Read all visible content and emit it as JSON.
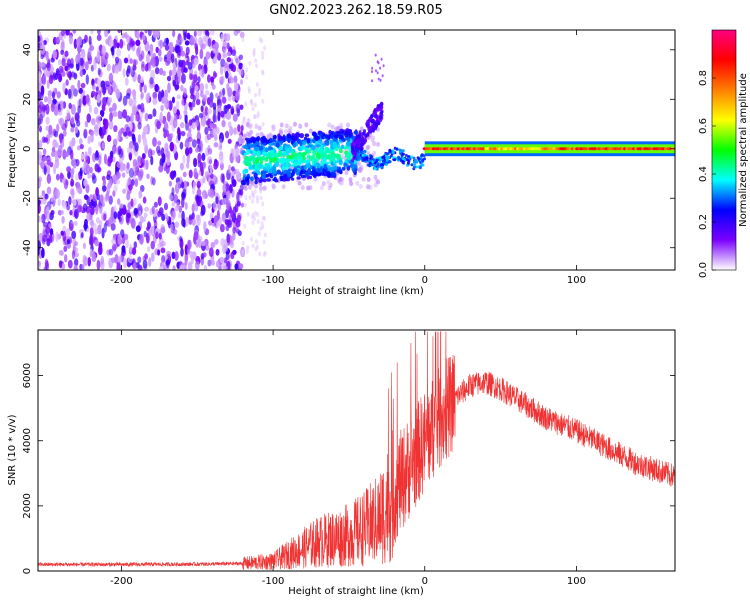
{
  "title": "GN02.2023.262.18.59.R05",
  "chart_data": [
    {
      "type": "heatmap",
      "xlabel": "Height of straight line (km)",
      "ylabel": "Frequency (Hz)",
      "xlim": [
        -255,
        165
      ],
      "ylim": [
        -49,
        48
      ],
      "xticks": [
        -200,
        -100,
        0,
        100
      ],
      "xtick_labels": [
        "-200",
        "-100",
        "0",
        "100"
      ],
      "yticks": [
        -40,
        -20,
        0,
        20,
        40
      ],
      "ytick_labels": [
        "-40",
        "-20",
        "0",
        "20",
        "40"
      ],
      "colorbar": {
        "label": "Normalized spectral amplitude",
        "range": [
          0,
          1
        ],
        "ticks": [
          0.0,
          0.2,
          0.4,
          0.6,
          0.8
        ],
        "tick_labels": [
          "0.0",
          "0.2",
          "0.4",
          "0.6",
          "0.8"
        ],
        "colors": [
          "#ffffff",
          "#7b00ff",
          "#0000ff",
          "#00ffff",
          "#00ff00",
          "#ffff00",
          "#ff7f00",
          "#ff0000",
          "#ff0080"
        ]
      },
      "features": [
        {
          "name": "broadband noise",
          "x_range": [
            -255,
            -120
          ],
          "y_range": [
            -49,
            48
          ],
          "amplitude": 0.15
        },
        {
          "name": "signal onset",
          "x_range": [
            -120,
            -45
          ],
          "y_range": [
            -15,
            5
          ],
          "amplitude": 0.35
        },
        {
          "name": "rising branch",
          "x_range": [
            -45,
            -30
          ],
          "y_range": [
            0,
            28
          ],
          "amplitude": 0.2
        },
        {
          "name": "carrier",
          "x_range": [
            0,
            165
          ],
          "y_center": 0,
          "amplitude": 0.95
        }
      ]
    },
    {
      "type": "line",
      "xlabel": "Height of straight line (km)",
      "ylabel": "SNR (10 * v/v)",
      "xlim": [
        -255,
        165
      ],
      "ylim": [
        0,
        7400
      ],
      "xticks": [
        -200,
        -100,
        0,
        100
      ],
      "xtick_labels": [
        "-200",
        "-100",
        "0",
        "100"
      ],
      "yticks": [
        0,
        2000,
        4000,
        6000
      ],
      "ytick_labels": [
        "0",
        "2000",
        "4000",
        "6000"
      ],
      "series": [
        {
          "name": "SNR",
          "color": "#f03232",
          "x": [
            -255,
            -200,
            -150,
            -120,
            -100,
            -90,
            -80,
            -70,
            -60,
            -50,
            -40,
            -30,
            -20,
            -10,
            0,
            10,
            20,
            30,
            40,
            50,
            60,
            70,
            80,
            100,
            120,
            140,
            165
          ],
          "y": [
            200,
            200,
            210,
            230,
            300,
            500,
            700,
            900,
            1000,
            1100,
            1300,
            1600,
            2400,
            3200,
            4000,
            4700,
            5300,
            5700,
            5800,
            5600,
            5300,
            5000,
            4700,
            4300,
            3800,
            3300,
            2900
          ]
        }
      ]
    }
  ]
}
